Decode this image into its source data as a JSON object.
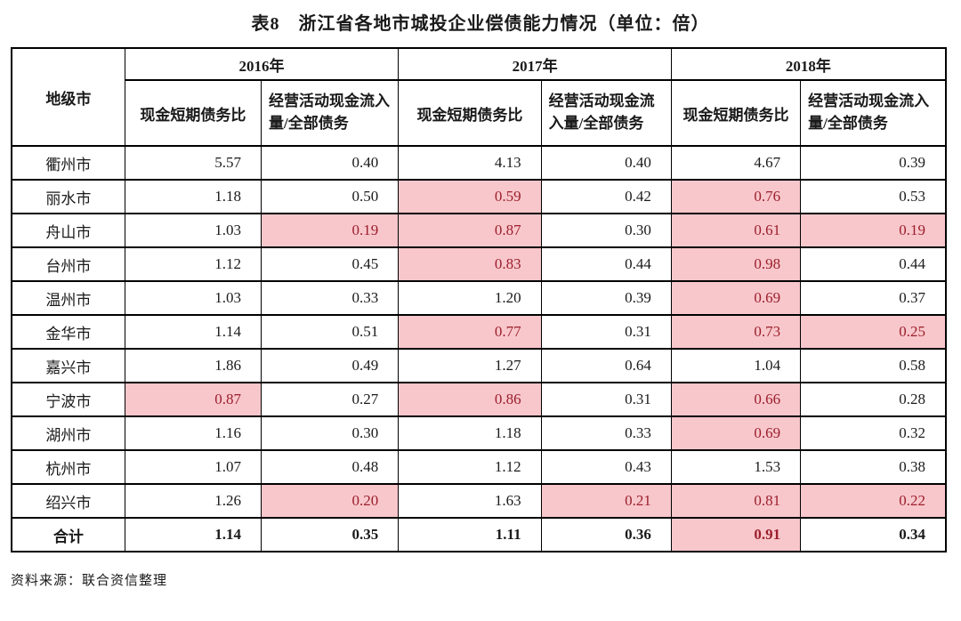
{
  "page": {
    "title": "表8　浙江省各地市城投企业偿债能力情况（单位：倍）",
    "source_note": "资料来源：联合资信整理"
  },
  "colors": {
    "highlight_bg": "#F8C7CB",
    "highlight_text": "#9B1F2D",
    "border": "#000000",
    "text": "#1A1A1A"
  },
  "table": {
    "corner_header": "地级市",
    "year_groups": [
      {
        "year": "2016年",
        "columns": [
          "现金短期债务比",
          "经营活动现金流入量/全部债务"
        ]
      },
      {
        "year": "2017年",
        "columns": [
          "现金短期债务比",
          "经营活动现金流入量/全部债务"
        ]
      },
      {
        "year": "2018年",
        "columns": [
          "现金短期债务比",
          "经营活动现金流入量/全部债务"
        ]
      }
    ],
    "rows": [
      {
        "city": "衢州市",
        "values": [
          "5.57",
          "0.40",
          "4.13",
          "0.40",
          "4.67",
          "0.39"
        ],
        "highlight": [
          false,
          false,
          false,
          false,
          false,
          false
        ],
        "bold": false
      },
      {
        "city": "丽水市",
        "values": [
          "1.18",
          "0.50",
          "0.59",
          "0.42",
          "0.76",
          "0.53"
        ],
        "highlight": [
          false,
          false,
          true,
          false,
          true,
          false
        ],
        "bold": false
      },
      {
        "city": "舟山市",
        "values": [
          "1.03",
          "0.19",
          "0.87",
          "0.30",
          "0.61",
          "0.19"
        ],
        "highlight": [
          false,
          true,
          true,
          false,
          true,
          true
        ],
        "bold": false
      },
      {
        "city": "台州市",
        "values": [
          "1.12",
          "0.45",
          "0.83",
          "0.44",
          "0.98",
          "0.44"
        ],
        "highlight": [
          false,
          false,
          true,
          false,
          true,
          false
        ],
        "bold": false
      },
      {
        "city": "温州市",
        "values": [
          "1.03",
          "0.33",
          "1.20",
          "0.39",
          "0.69",
          "0.37"
        ],
        "highlight": [
          false,
          false,
          false,
          false,
          true,
          false
        ],
        "bold": false
      },
      {
        "city": "金华市",
        "values": [
          "1.14",
          "0.51",
          "0.77",
          "0.31",
          "0.73",
          "0.25"
        ],
        "highlight": [
          false,
          false,
          true,
          false,
          true,
          true
        ],
        "bold": false
      },
      {
        "city": "嘉兴市",
        "values": [
          "1.86",
          "0.49",
          "1.27",
          "0.64",
          "1.04",
          "0.58"
        ],
        "highlight": [
          false,
          false,
          false,
          false,
          false,
          false
        ],
        "bold": false
      },
      {
        "city": "宁波市",
        "values": [
          "0.87",
          "0.27",
          "0.86",
          "0.31",
          "0.66",
          "0.28"
        ],
        "highlight": [
          true,
          false,
          true,
          false,
          true,
          false
        ],
        "bold": false
      },
      {
        "city": "湖州市",
        "values": [
          "1.16",
          "0.30",
          "1.18",
          "0.33",
          "0.69",
          "0.32"
        ],
        "highlight": [
          false,
          false,
          false,
          false,
          true,
          false
        ],
        "bold": false
      },
      {
        "city": "杭州市",
        "values": [
          "1.07",
          "0.48",
          "1.12",
          "0.43",
          "1.53",
          "0.38"
        ],
        "highlight": [
          false,
          false,
          false,
          false,
          false,
          false
        ],
        "bold": false
      },
      {
        "city": "绍兴市",
        "values": [
          "1.26",
          "0.20",
          "1.63",
          "0.21",
          "0.81",
          "0.22"
        ],
        "highlight": [
          false,
          true,
          false,
          true,
          true,
          true
        ],
        "bold": false
      },
      {
        "city": "合计",
        "values": [
          "1.14",
          "0.35",
          "1.11",
          "0.36",
          "0.91",
          "0.34"
        ],
        "highlight": [
          false,
          false,
          false,
          false,
          true,
          false
        ],
        "bold": true
      }
    ]
  }
}
